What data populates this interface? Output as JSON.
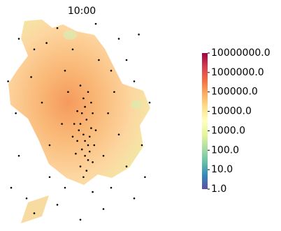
{
  "chart_data": {
    "type": "scatter",
    "title": "10:00",
    "x": [
      52,
      55,
      50,
      57,
      53,
      48,
      58,
      51,
      54,
      56,
      49,
      53,
      59,
      47,
      55,
      52,
      50,
      57,
      46,
      60,
      54,
      51,
      48,
      56,
      53,
      58,
      45,
      55,
      50,
      52,
      10,
      20,
      35,
      60,
      75,
      80,
      70,
      85,
      95,
      90,
      80,
      70,
      65,
      50,
      35,
      20,
      5,
      10,
      8,
      25,
      30,
      40,
      45,
      62,
      68,
      75,
      40,
      30,
      15,
      85,
      92,
      3,
      18,
      38,
      65,
      72,
      42,
      28,
      88,
      58
    ],
    "y": [
      45,
      40,
      50,
      48,
      35,
      42,
      55,
      38,
      52,
      44,
      47,
      58,
      40,
      36,
      33,
      62,
      30,
      60,
      50,
      47,
      28,
      55,
      56,
      37,
      42,
      32,
      44,
      65,
      68,
      25,
      90,
      85,
      95,
      97,
      90,
      80,
      75,
      70,
      60,
      40,
      30,
      20,
      10,
      5,
      12,
      8,
      20,
      35,
      55,
      60,
      40,
      75,
      85,
      80,
      55,
      45,
      20,
      25,
      15,
      15,
      25,
      70,
      72,
      50,
      35,
      65,
      65,
      88,
      92,
      18
    ],
    "xlim": [
      0,
      100
    ],
    "ylim": [
      0,
      100
    ],
    "color": "#000000",
    "colorbar": {
      "scale": "log",
      "lim": [
        1,
        10000000
      ],
      "ticks": [
        {
          "value": 1,
          "label": "1.0"
        },
        {
          "value": 10,
          "label": "10.0"
        },
        {
          "value": 100,
          "label": "100.0"
        },
        {
          "value": 1000,
          "label": "1000.0"
        },
        {
          "value": 10000,
          "label": "10000.0"
        },
        {
          "value": 100000,
          "label": "100000.0"
        },
        {
          "value": 1000000,
          "label": "1000000.0"
        },
        {
          "value": 10000000,
          "label": "10000000.0"
        }
      ],
      "colormap": [
        "#5e4fa2",
        "#3288bd",
        "#66c2a5",
        "#abdda4",
        "#e6f598",
        "#ffffbf",
        "#fee08b",
        "#fdae61",
        "#f46d43",
        "#d53e4f",
        "#9e0142"
      ]
    }
  }
}
